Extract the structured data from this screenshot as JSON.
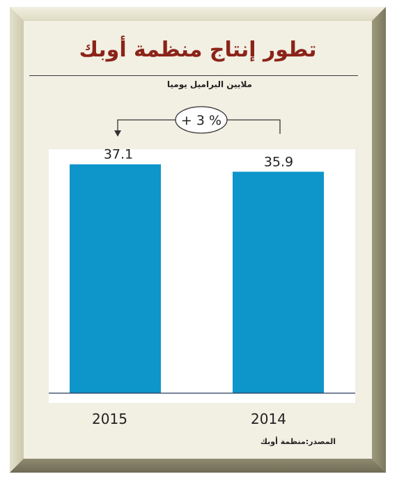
{
  "title": "تطور إنتاج منظمة أوبك",
  "subtitle": "ملايين البراميل يوميا",
  "source": "المصدر:منظمة أوبك",
  "change_annotation": "+ 3 %",
  "colors": {
    "bar": "#0e95c9",
    "title": "#8b2318",
    "plot_background": "#ffffff",
    "panel": "#f2efe3",
    "frame": "#c9c5a6"
  },
  "chart_data": {
    "type": "bar",
    "categories": [
      "2015",
      "2014"
    ],
    "values": [
      37.1,
      35.9
    ],
    "value_labels": [
      "37.1",
      "35.9"
    ],
    "ylim": [
      0,
      38.2
    ],
    "grid": false,
    "legend": "none"
  }
}
